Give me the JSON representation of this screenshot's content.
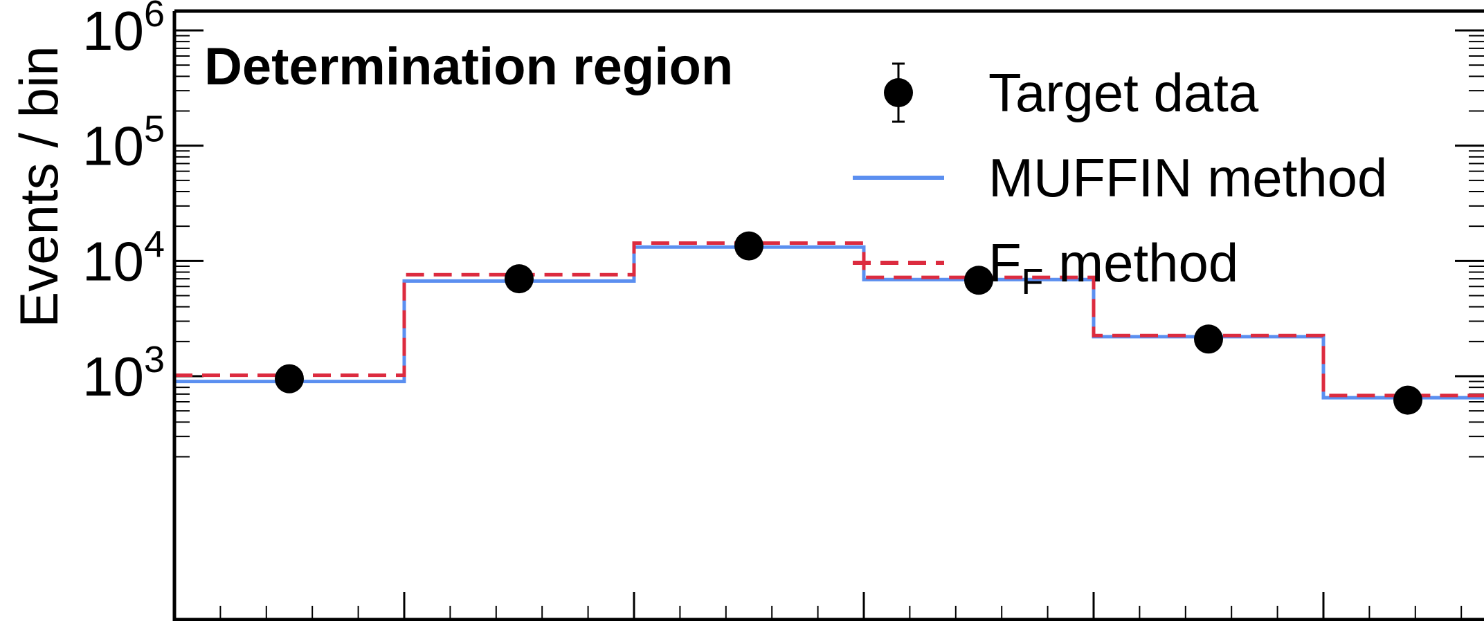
{
  "chart_data": {
    "type": "line",
    "region_label": "Determination region",
    "ylabel": "Events / bin",
    "yscale": "log",
    "ylim": [
      200,
      1000000
    ],
    "x_bin_edges": [
      0,
      1,
      2,
      3,
      4,
      5,
      6
    ],
    "y_ticks": [
      {
        "base": "10",
        "exp": "3",
        "value": 1000
      },
      {
        "base": "10",
        "exp": "4",
        "value": 10000
      },
      {
        "base": "10",
        "exp": "5",
        "value": 100000
      },
      {
        "base": "10",
        "exp": "6",
        "value": 1000000
      }
    ],
    "legend": {
      "placement": "top-right",
      "entries": [
        {
          "label": "Target data",
          "style": "marker"
        },
        {
          "label": "MUFFIN method",
          "style": "solid"
        },
        {
          "label_main": "F",
          "label_sub": "F",
          "label_rest": " method",
          "style": "dashed"
        }
      ]
    },
    "series": [
      {
        "name": "Target data",
        "kind": "points",
        "color": "#000000",
        "values": [
          950,
          7000,
          13500,
          6800,
          2100,
          620
        ],
        "err_lo": [
          200,
          1300,
          2400,
          1200,
          400,
          120
        ],
        "err_hi": [
          200,
          1300,
          2400,
          1200,
          400,
          120
        ]
      },
      {
        "name": "MUFFIN method",
        "kind": "step",
        "color": "#5b8ff0",
        "dash": "solid",
        "values": [
          900,
          6700,
          13200,
          6900,
          2200,
          650
        ]
      },
      {
        "name": "F_F method",
        "kind": "step",
        "color": "#dc2b3f",
        "dash": "dashed",
        "values": [
          1020,
          7600,
          14300,
          7200,
          2250,
          680
        ]
      }
    ]
  }
}
